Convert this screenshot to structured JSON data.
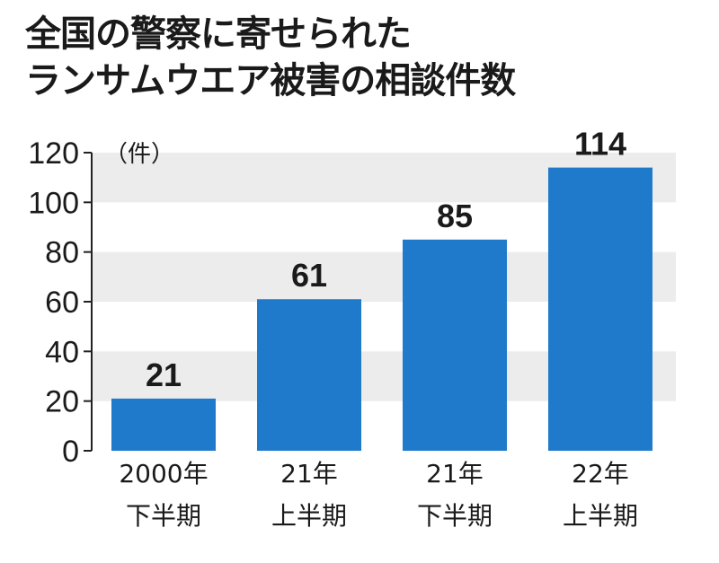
{
  "chart_data": {
    "type": "bar",
    "title": [
      "全国の警察に寄せられた",
      "ランサムウエア被害の相談件数"
    ],
    "unit": "（件）",
    "categories": [
      [
        "2000年",
        "下半期"
      ],
      [
        "21年",
        "上半期"
      ],
      [
        "21年",
        "下半期"
      ],
      [
        "22年",
        "上半期"
      ]
    ],
    "values": [
      21,
      61,
      85,
      114
    ],
    "ylim": [
      0,
      120
    ],
    "yticks": [
      0,
      20,
      40,
      60,
      80,
      100,
      120
    ],
    "grid": "alternating bands",
    "bar_color": "#1f7acb",
    "band_color": "#ececec"
  }
}
